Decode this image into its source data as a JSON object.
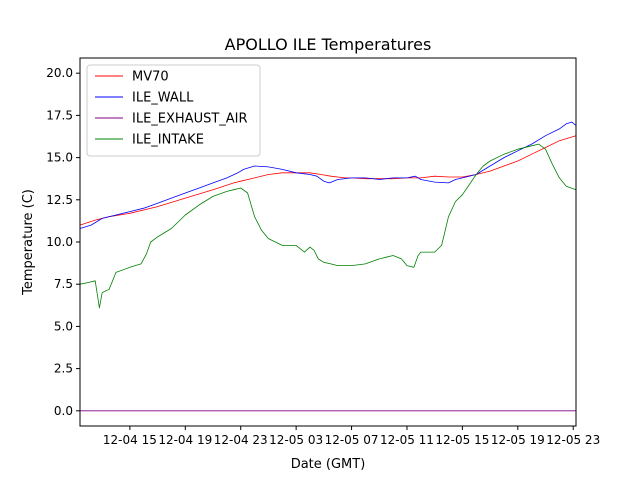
{
  "chart_data": {
    "type": "line",
    "title": "APOLLO ILE Temperatures",
    "xlabel": "Date (GMT)",
    "ylabel": "Temperature (C)",
    "xlim": [
      11.4,
      47.2
    ],
    "ylim": [
      -0.9,
      20.9
    ],
    "x_ticks": [
      {
        "value": 15,
        "label": "12-04 15"
      },
      {
        "value": 19,
        "label": "12-04 19"
      },
      {
        "value": 23,
        "label": "12-04 23"
      },
      {
        "value": 27,
        "label": "12-05 03"
      },
      {
        "value": 31,
        "label": "12-05 07"
      },
      {
        "value": 35,
        "label": "12-05 11"
      },
      {
        "value": 39,
        "label": "12-05 15"
      },
      {
        "value": 43,
        "label": "12-05 19"
      },
      {
        "value": 47,
        "label": "12-05 23"
      }
    ],
    "y_ticks": [
      {
        "value": 0,
        "label": "0.0"
      },
      {
        "value": 2.5,
        "label": "2.5"
      },
      {
        "value": 5,
        "label": "5.0"
      },
      {
        "value": 7.5,
        "label": "7.5"
      },
      {
        "value": 10,
        "label": "10.0"
      },
      {
        "value": 12.5,
        "label": "12.5"
      },
      {
        "value": 15,
        "label": "15.0"
      },
      {
        "value": 17.5,
        "label": "17.5"
      },
      {
        "value": 20,
        "label": "20.0"
      }
    ],
    "legend_position": "top-left",
    "series": [
      {
        "name": "MV70",
        "color": "#ff0000",
        "points": [
          [
            11.4,
            11.0
          ],
          [
            12.5,
            11.3
          ],
          [
            13.5,
            11.5
          ],
          [
            15,
            11.7
          ],
          [
            17,
            12.1
          ],
          [
            19,
            12.6
          ],
          [
            21,
            13.1
          ],
          [
            22.5,
            13.5
          ],
          [
            23,
            13.6
          ],
          [
            24,
            13.8
          ],
          [
            25,
            14.0
          ],
          [
            26,
            14.1
          ],
          [
            27,
            14.1
          ],
          [
            28,
            14.1
          ],
          [
            28.8,
            14.0
          ],
          [
            29.5,
            13.9
          ],
          [
            30.5,
            13.8
          ],
          [
            31,
            13.8
          ],
          [
            32,
            13.75
          ],
          [
            33,
            13.75
          ],
          [
            34,
            13.75
          ],
          [
            35,
            13.8
          ],
          [
            36,
            13.8
          ],
          [
            37,
            13.9
          ],
          [
            38,
            13.85
          ],
          [
            39,
            13.85
          ],
          [
            40,
            14.0
          ],
          [
            41,
            14.2
          ],
          [
            42,
            14.5
          ],
          [
            43,
            14.8
          ],
          [
            44,
            15.2
          ],
          [
            45,
            15.6
          ],
          [
            46,
            16.0
          ],
          [
            47.2,
            16.3
          ]
        ]
      },
      {
        "name": "ILE_WALL",
        "color": "#0000ff",
        "points": [
          [
            11.4,
            10.8
          ],
          [
            12.2,
            11.0
          ],
          [
            13,
            11.4
          ],
          [
            14,
            11.6
          ],
          [
            15,
            11.8
          ],
          [
            16,
            12.0
          ],
          [
            17,
            12.3
          ],
          [
            18,
            12.6
          ],
          [
            19,
            12.9
          ],
          [
            20,
            13.2
          ],
          [
            21,
            13.5
          ],
          [
            22,
            13.8
          ],
          [
            22.8,
            14.1
          ],
          [
            23.2,
            14.3
          ],
          [
            24,
            14.5
          ],
          [
            25,
            14.45
          ],
          [
            26,
            14.3
          ],
          [
            27,
            14.1
          ],
          [
            28,
            14.0
          ],
          [
            28.5,
            13.9
          ],
          [
            29,
            13.6
          ],
          [
            29.4,
            13.5
          ],
          [
            30,
            13.7
          ],
          [
            31,
            13.8
          ],
          [
            32,
            13.8
          ],
          [
            33,
            13.7
          ],
          [
            34,
            13.8
          ],
          [
            35,
            13.8
          ],
          [
            35.6,
            13.9
          ],
          [
            36,
            13.7
          ],
          [
            37,
            13.55
          ],
          [
            38,
            13.5
          ],
          [
            38.5,
            13.7
          ],
          [
            39,
            13.8
          ],
          [
            40,
            14.0
          ],
          [
            41,
            14.5
          ],
          [
            42,
            15.0
          ],
          [
            43,
            15.4
          ],
          [
            44,
            15.8
          ],
          [
            45,
            16.3
          ],
          [
            46,
            16.7
          ],
          [
            46.5,
            17.0
          ],
          [
            46.9,
            17.1
          ],
          [
            47.2,
            16.9
          ]
        ]
      },
      {
        "name": "ILE_EXHAUST_AIR",
        "color": "#800080",
        "points": [
          [
            11.4,
            0.0
          ],
          [
            47.2,
            0.0
          ]
        ]
      },
      {
        "name": "ILE_INTAKE",
        "color": "#008000",
        "points": [
          [
            11.4,
            7.5
          ],
          [
            12,
            7.6
          ],
          [
            12.5,
            7.7
          ],
          [
            12.8,
            6.1
          ],
          [
            13,
            7.0
          ],
          [
            13.5,
            7.2
          ],
          [
            14,
            8.2
          ],
          [
            15,
            8.5
          ],
          [
            15.8,
            8.7
          ],
          [
            16.2,
            9.3
          ],
          [
            16.5,
            10.0
          ],
          [
            17,
            10.3
          ],
          [
            18,
            10.8
          ],
          [
            19,
            11.6
          ],
          [
            20,
            12.2
          ],
          [
            21,
            12.7
          ],
          [
            22,
            13.0
          ],
          [
            22.5,
            13.1
          ],
          [
            23,
            13.2
          ],
          [
            23.5,
            12.9
          ],
          [
            24,
            11.5
          ],
          [
            24.5,
            10.7
          ],
          [
            25,
            10.2
          ],
          [
            26,
            9.8
          ],
          [
            27,
            9.8
          ],
          [
            27.6,
            9.4
          ],
          [
            28,
            9.7
          ],
          [
            28.3,
            9.5
          ],
          [
            28.6,
            9.0
          ],
          [
            29,
            8.8
          ],
          [
            29.5,
            8.7
          ],
          [
            30,
            8.6
          ],
          [
            31,
            8.6
          ],
          [
            32,
            8.7
          ],
          [
            33,
            9.0
          ],
          [
            33.5,
            9.1
          ],
          [
            34,
            9.2
          ],
          [
            34.6,
            9.0
          ],
          [
            35,
            8.6
          ],
          [
            35.5,
            8.5
          ],
          [
            35.8,
            9.2
          ],
          [
            36,
            9.4
          ],
          [
            37,
            9.4
          ],
          [
            37.5,
            9.8
          ],
          [
            38,
            11.5
          ],
          [
            38.5,
            12.4
          ],
          [
            39,
            12.8
          ],
          [
            39.5,
            13.4
          ],
          [
            40,
            14.0
          ],
          [
            40.5,
            14.5
          ],
          [
            41,
            14.8
          ],
          [
            42,
            15.2
          ],
          [
            43,
            15.5
          ],
          [
            44,
            15.7
          ],
          [
            44.5,
            15.8
          ],
          [
            45,
            15.5
          ],
          [
            45.5,
            14.6
          ],
          [
            46,
            13.8
          ],
          [
            46.5,
            13.3
          ],
          [
            47.2,
            13.1
          ]
        ]
      }
    ]
  }
}
